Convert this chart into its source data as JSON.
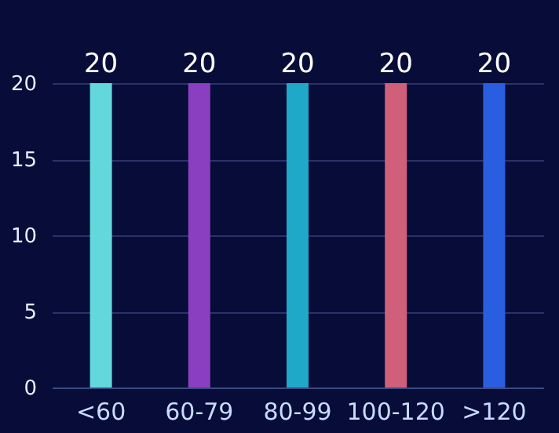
{
  "chart_data": {
    "type": "bar",
    "categories": [
      "<60",
      "60-79",
      "80-99",
      "100-120",
      ">120"
    ],
    "values": [
      20,
      20,
      20,
      20,
      20
    ],
    "colors": [
      "#62d8dc",
      "#8a3fc0",
      "#1fa8c8",
      "#d0607a",
      "#2a5ee0"
    ],
    "ylim": [
      0,
      20
    ],
    "yticks": [
      0,
      5,
      10,
      15,
      20
    ],
    "grid": "y",
    "data_labels": true
  }
}
